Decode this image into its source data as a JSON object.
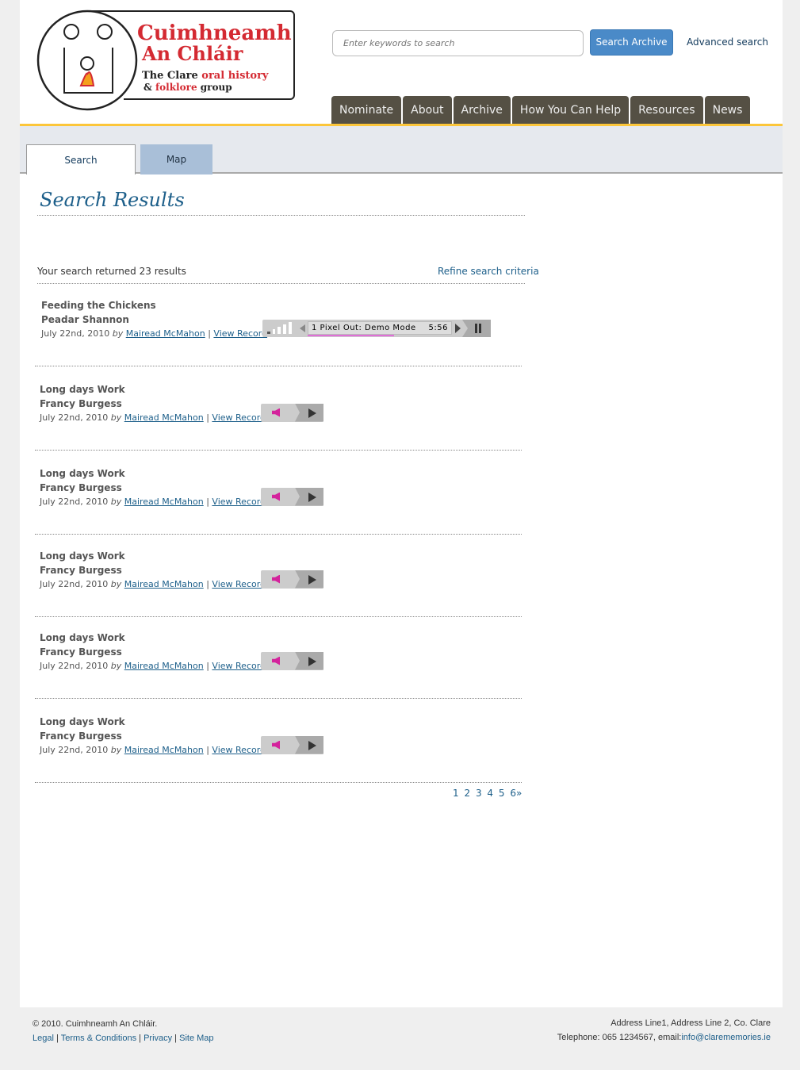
{
  "logo": {
    "line1": "Cuimhneamh",
    "line2": "An Chláir",
    "line3a": "The Clare ",
    "line3b": "oral history",
    "line4a": "& ",
    "line4b": "folklore",
    "line4c": " group"
  },
  "header": {
    "search_placeholder": "Enter keywords to search",
    "search_button": "Search Archive",
    "advanced": "Advanced search"
  },
  "nav": [
    "Nominate",
    "About",
    "Archive",
    "How You Can Help",
    "Resources",
    "News"
  ],
  "tabs": [
    "Search",
    "Map"
  ],
  "page_title": "Search Results",
  "summary": {
    "count_text": "Your search returned 23 results",
    "refine": "Refine search criteria"
  },
  "player": {
    "track": "1 Pixel Out: Demo Mode",
    "time": "5:56",
    "progress": 0.6
  },
  "results": [
    {
      "title": "Feeding the Chickens",
      "person": "Peadar Shannon",
      "date": "July 22nd, 2010",
      "by": "by",
      "author": "Mairead McMahon",
      "view": "View Record"
    },
    {
      "title": "Long days Work",
      "person": "Francy Burgess",
      "date": "July 22nd, 2010",
      "by": "by",
      "author": "Mairead McMahon",
      "view": "View Record"
    },
    {
      "title": "Long days Work",
      "person": "Francy Burgess",
      "date": "July 22nd, 2010",
      "by": "by",
      "author": "Mairead McMahon",
      "view": "View Record"
    },
    {
      "title": "Long days Work",
      "person": "Francy Burgess",
      "date": "July 22nd, 2010",
      "by": "by",
      "author": "Mairead McMahon",
      "view": "View Record"
    },
    {
      "title": "Long days Work",
      "person": "Francy Burgess",
      "date": "July 22nd, 2010",
      "by": "by",
      "author": "Mairead McMahon",
      "view": "View Record"
    },
    {
      "title": "Long days Work",
      "person": "Francy Burgess",
      "date": "July 22nd, 2010",
      "by": "by",
      "author": "Mairead McMahon",
      "view": "View Record"
    }
  ],
  "pagination": [
    "1",
    "2",
    "3",
    "4",
    "5",
    "6",
    "»"
  ],
  "footer": {
    "copyright": "© 2010. Cuimhneamh An Chláir.",
    "links": [
      "Legal",
      "Terms & Conditions",
      "Privacy",
      "Site Map"
    ],
    "address": "Address Line1, Address Line 2, Co. Clare",
    "phone": "Telephone: 065 1234567, email:",
    "email": "info@clarememories.ie"
  },
  "colors": {
    "accent": "#1d5f8a",
    "nav": "#555044",
    "highlight": "#fcc63a",
    "brand_red": "#d42a32"
  }
}
